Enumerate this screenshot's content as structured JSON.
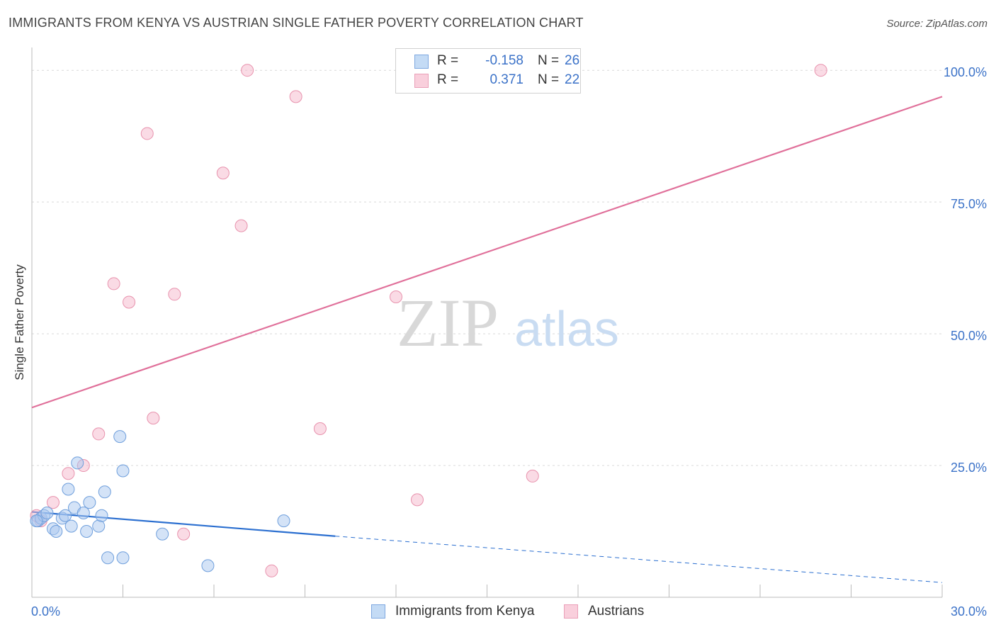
{
  "header": {
    "title": "IMMIGRANTS FROM KENYA VS AUSTRIAN SINGLE FATHER POVERTY CORRELATION CHART",
    "source": "Source: ZipAtlas.com"
  },
  "watermark": {
    "zip": "ZIP",
    "atlas": "atlas"
  },
  "stats_legend": {
    "rows": [
      {
        "r_label": "R =",
        "r_value": "-0.158",
        "n_label": "N =",
        "n_value": "26",
        "color": "#a9c8ef"
      },
      {
        "r_label": "R =",
        "r_value": "0.371",
        "n_label": "N =",
        "n_value": "22",
        "color": "#f5b8cb"
      }
    ]
  },
  "series_legend": {
    "kenya_label": "Immigrants from Kenya",
    "austrians_label": "Austrians"
  },
  "colors": {
    "kenya_fill": "#a9c8ef",
    "kenya_stroke": "#6f9fdc",
    "kenya_line": "#2b6fd0",
    "austrians_fill": "#f5b8cb",
    "austrians_stroke": "#e892ad",
    "austrians_line": "#e0709a",
    "axis_label_blue": "#3b72c8",
    "grid": "#d9d9d9"
  },
  "chart_data": {
    "type": "scatter",
    "title": "IMMIGRANTS FROM KENYA VS AUSTRIAN SINGLE FATHER POVERTY CORRELATION CHART",
    "xlabel": "",
    "ylabel": "Single Father Poverty",
    "xlim": [
      0,
      30
    ],
    "ylim": [
      0,
      105
    ],
    "x_tick_labels": [
      "0.0%",
      "30.0%"
    ],
    "y_ticks": [
      25,
      50,
      75,
      100
    ],
    "y_tick_labels": [
      "25.0%",
      "50.0%",
      "75.0%",
      "100.0%"
    ],
    "grid": true,
    "legend_position": "bottom-center",
    "series": [
      {
        "name": "Immigrants from Kenya",
        "points": [
          [
            0.2,
            14.5
          ],
          [
            0.3,
            15.0
          ],
          [
            0.4,
            15.5
          ],
          [
            0.5,
            16.0
          ],
          [
            0.7,
            13.0
          ],
          [
            0.8,
            12.5
          ],
          [
            1.0,
            15.0
          ],
          [
            1.1,
            15.5
          ],
          [
            1.2,
            20.5
          ],
          [
            1.3,
            13.5
          ],
          [
            1.4,
            17.0
          ],
          [
            1.5,
            25.5
          ],
          [
            1.7,
            16.0
          ],
          [
            1.8,
            12.5
          ],
          [
            1.9,
            18.0
          ],
          [
            2.2,
            13.5
          ],
          [
            2.3,
            15.5
          ],
          [
            2.4,
            20.0
          ],
          [
            2.5,
            7.5
          ],
          [
            2.9,
            30.5
          ],
          [
            3.0,
            24.0
          ],
          [
            3.0,
            7.5
          ],
          [
            4.3,
            12.0
          ],
          [
            5.8,
            6.0
          ],
          [
            8.3,
            14.5
          ],
          [
            0.15,
            14.5
          ]
        ],
        "trend": {
          "x": [
            0,
            10
          ],
          "y": [
            16.2,
            11.6
          ],
          "dashed_to": [
            30,
            2.8
          ]
        }
      },
      {
        "name": "Austrians",
        "points": [
          [
            0.15,
            15.5
          ],
          [
            0.7,
            18.0
          ],
          [
            1.2,
            23.5
          ],
          [
            1.7,
            25.0
          ],
          [
            2.2,
            31.0
          ],
          [
            2.7,
            59.5
          ],
          [
            3.2,
            56.0
          ],
          [
            3.8,
            88.0
          ],
          [
            4.0,
            34.0
          ],
          [
            4.7,
            57.5
          ],
          [
            5.0,
            12.0
          ],
          [
            6.3,
            80.5
          ],
          [
            6.9,
            70.5
          ],
          [
            7.1,
            100.0
          ],
          [
            7.9,
            5.0
          ],
          [
            8.7,
            95.0
          ],
          [
            9.5,
            32.0
          ],
          [
            12.0,
            57.0
          ],
          [
            12.7,
            18.5
          ],
          [
            16.5,
            23.0
          ],
          [
            26.0,
            100.0
          ],
          [
            0.3,
            14.5
          ]
        ],
        "trend": {
          "x": [
            0,
            30
          ],
          "y": [
            36.0,
            95.0
          ]
        }
      }
    ]
  }
}
